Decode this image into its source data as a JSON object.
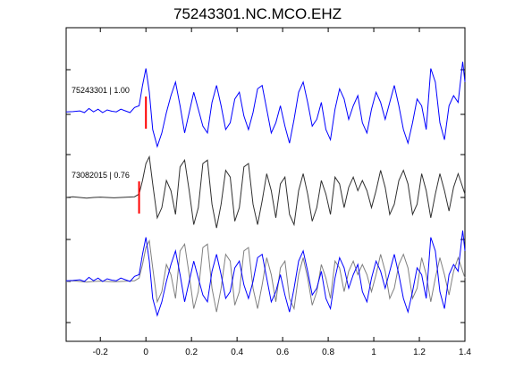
{
  "chart_data": {
    "type": "line",
    "title": "75243301.NC.MCO.EHZ",
    "xlabel": "",
    "ylabel": "",
    "xlim": [
      -0.35,
      1.4
    ],
    "xticks": [
      -0.2,
      0,
      0.2,
      0.4,
      0.6,
      0.8,
      1,
      1.2,
      1.4
    ],
    "xtick_labels": [
      "-0.2",
      "0",
      "0.2",
      "0.4",
      "0.6",
      "0.8",
      "1",
      "1.2",
      "1.4"
    ],
    "grid": false,
    "traces": [
      {
        "label": "75243301 | 1.00",
        "color": "#0000ff",
        "pick_time": 0.0,
        "pick_color": "#ff0000",
        "x": [
          -0.35,
          -0.32,
          -0.29,
          -0.27,
          -0.25,
          -0.23,
          -0.21,
          -0.19,
          -0.17,
          -0.15,
          -0.13,
          -0.11,
          -0.09,
          -0.07,
          -0.05,
          -0.03,
          -0.015,
          0.0,
          0.015,
          0.03,
          0.05,
          0.07,
          0.09,
          0.11,
          0.13,
          0.15,
          0.17,
          0.19,
          0.21,
          0.23,
          0.25,
          0.27,
          0.29,
          0.31,
          0.33,
          0.35,
          0.37,
          0.39,
          0.41,
          0.43,
          0.45,
          0.47,
          0.49,
          0.51,
          0.53,
          0.55,
          0.57,
          0.59,
          0.61,
          0.63,
          0.65,
          0.67,
          0.69,
          0.71,
          0.73,
          0.75,
          0.77,
          0.79,
          0.81,
          0.83,
          0.85,
          0.87,
          0.89,
          0.91,
          0.93,
          0.95,
          0.97,
          0.99,
          1.01,
          1.03,
          1.05,
          1.07,
          1.09,
          1.11,
          1.13,
          1.15,
          1.17,
          1.19,
          1.21,
          1.23,
          1.25,
          1.27,
          1.29,
          1.31,
          1.33,
          1.35,
          1.37,
          1.39,
          1.4
        ],
        "y": [
          0.02,
          0.03,
          0.05,
          0.0,
          0.12,
          0.02,
          0.1,
          0.0,
          0.08,
          0.04,
          0.02,
          0.1,
          0.05,
          0.0,
          0.15,
          0.2,
          0.8,
          1.3,
          0.6,
          -0.5,
          -1.0,
          -0.6,
          0.0,
          0.5,
          0.9,
          0.2,
          -0.6,
          0.0,
          0.6,
          0.1,
          -0.4,
          -0.6,
          0.3,
          0.8,
          0.2,
          -0.5,
          -0.3,
          0.4,
          0.6,
          -0.1,
          -0.5,
          0.0,
          0.7,
          0.8,
          0.1,
          -0.6,
          -0.3,
          0.2,
          -0.4,
          -0.9,
          -0.2,
          0.6,
          0.9,
          0.3,
          -0.4,
          -0.2,
          0.3,
          -0.5,
          -0.8,
          0.1,
          0.7,
          0.4,
          -0.2,
          0.2,
          0.5,
          -0.3,
          -0.6,
          0.1,
          0.6,
          0.3,
          -0.2,
          0.3,
          0.8,
          0.2,
          -0.5,
          -0.9,
          -0.3,
          0.4,
          0.2,
          -0.5,
          1.3,
          0.9,
          -0.3,
          -0.8,
          0.2,
          0.5,
          0.3,
          1.5,
          0.9
        ]
      },
      {
        "label": "73082015 | 0.76",
        "color": "#303030",
        "pick_time": -0.03,
        "pick_color": "#ff0000",
        "x": [
          -0.35,
          -0.32,
          -0.29,
          -0.26,
          -0.23,
          -0.2,
          -0.17,
          -0.14,
          -0.11,
          -0.08,
          -0.05,
          -0.03,
          -0.015,
          0.0,
          0.015,
          0.03,
          0.05,
          0.07,
          0.09,
          0.11,
          0.13,
          0.15,
          0.17,
          0.19,
          0.21,
          0.23,
          0.25,
          0.27,
          0.29,
          0.31,
          0.33,
          0.35,
          0.37,
          0.39,
          0.41,
          0.43,
          0.45,
          0.47,
          0.49,
          0.51,
          0.53,
          0.55,
          0.57,
          0.59,
          0.61,
          0.63,
          0.65,
          0.67,
          0.69,
          0.71,
          0.73,
          0.75,
          0.77,
          0.79,
          0.81,
          0.83,
          0.85,
          0.87,
          0.89,
          0.91,
          0.93,
          0.95,
          0.97,
          0.99,
          1.01,
          1.03,
          1.05,
          1.07,
          1.09,
          1.11,
          1.13,
          1.15,
          1.17,
          1.19,
          1.21,
          1.23,
          1.25,
          1.27,
          1.29,
          1.31,
          1.33,
          1.35,
          1.37,
          1.39,
          1.4
        ],
        "y": [
          0.0,
          0.02,
          0.0,
          -0.02,
          0.0,
          0.01,
          0.0,
          -0.01,
          0.0,
          0.01,
          0.02,
          0.1,
          0.5,
          1.0,
          1.2,
          0.4,
          -0.6,
          -0.3,
          0.5,
          0.2,
          -0.5,
          0.9,
          1.1,
          0.2,
          -0.8,
          -0.3,
          1.0,
          1.1,
          -0.2,
          -0.9,
          -0.2,
          0.8,
          0.6,
          -0.7,
          -0.3,
          0.9,
          1.0,
          -0.2,
          -0.8,
          -0.1,
          0.7,
          0.2,
          -0.6,
          0.4,
          0.6,
          -0.5,
          -0.8,
          0.2,
          0.7,
          0.1,
          -0.7,
          -0.3,
          0.5,
          0.1,
          -0.5,
          0.6,
          0.4,
          -0.3,
          0.3,
          0.6,
          0.2,
          0.5,
          0.2,
          -0.3,
          0.2,
          0.8,
          0.3,
          -0.5,
          -0.2,
          0.5,
          0.8,
          0.4,
          -0.5,
          -0.2,
          0.7,
          0.2,
          -0.6,
          0.1,
          0.7,
          0.2,
          -0.4,
          0.3,
          0.7,
          0.3,
          0.1
        ]
      }
    ],
    "overlay": {
      "description_labels": [],
      "series_colors": [
        "#0000ff",
        "#808080"
      ]
    }
  }
}
